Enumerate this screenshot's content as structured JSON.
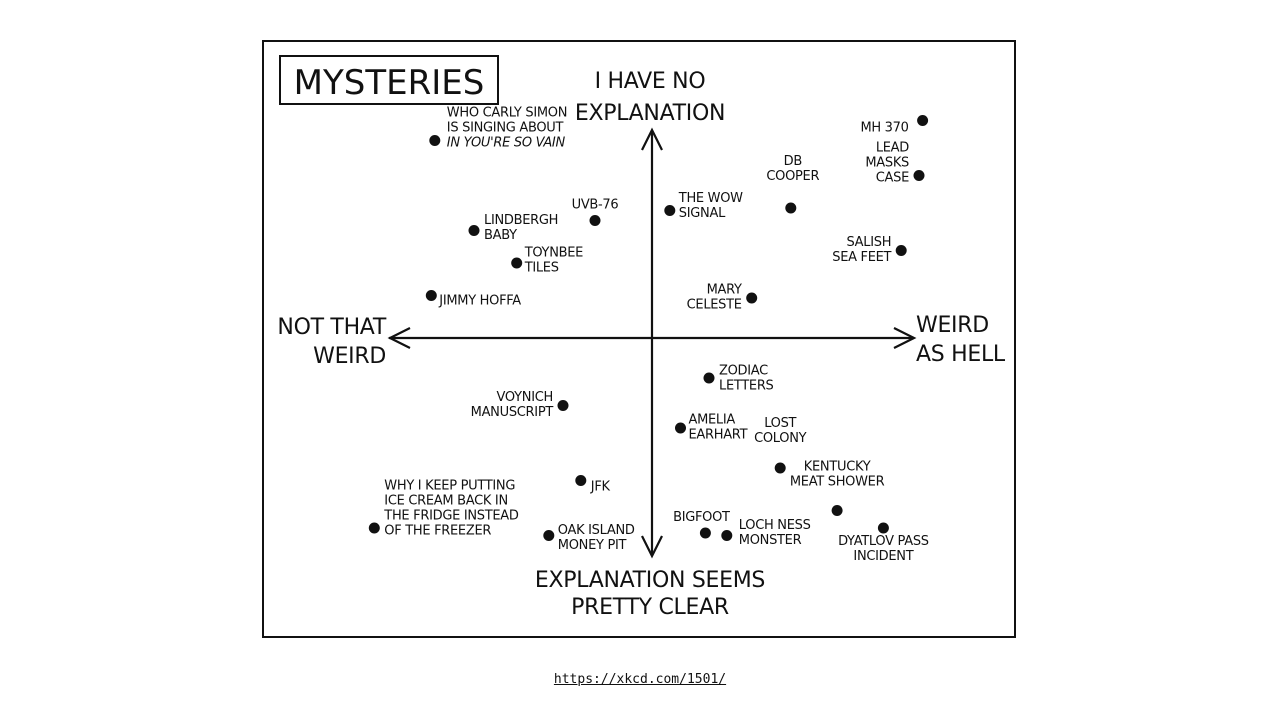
{
  "title": "MYSTERIES",
  "axes": {
    "top": [
      "I HAVE NO",
      "EXPLANATION"
    ],
    "bottom": [
      "EXPLANATION SEEMS",
      "PRETTY CLEAR"
    ],
    "left": [
      "NOT THAT",
      "WEIRD"
    ],
    "right": [
      "WEIRD",
      "AS HELL"
    ]
  },
  "items": [
    {
      "id": "carly-simon",
      "lines": [
        "WHO CARLY SIMON",
        "IS SINGING ABOUT",
        "IN YOU'RE SO VAIN"
      ],
      "italic_last": true,
      "weird": -0.61,
      "unexplained": 0.79
    },
    {
      "id": "uvb76",
      "lines": [
        "UVB-76"
      ],
      "weird": -0.16,
      "unexplained": 0.47
    },
    {
      "id": "wow-signal",
      "lines": [
        "THE WOW",
        "SIGNAL"
      ],
      "weird": 0.05,
      "unexplained": 0.51
    },
    {
      "id": "db-cooper",
      "lines": [
        "DB",
        "COOPER"
      ],
      "weird": 0.39,
      "unexplained": 0.52
    },
    {
      "id": "mh370",
      "lines": [
        "MH 370"
      ],
      "weird": 0.76,
      "unexplained": 0.87
    },
    {
      "id": "lead-masks",
      "lines": [
        "LEAD",
        "MASKS",
        "CASE"
      ],
      "weird": 0.75,
      "unexplained": 0.65
    },
    {
      "id": "lindbergh",
      "lines": [
        "LINDBERGH",
        "BABY"
      ],
      "weird": -0.5,
      "unexplained": 0.43
    },
    {
      "id": "toynbee",
      "lines": [
        "TOYNBEE",
        "TILES"
      ],
      "weird": -0.38,
      "unexplained": 0.3
    },
    {
      "id": "salish",
      "lines": [
        "SALISH",
        "SEA FEET"
      ],
      "weird": 0.7,
      "unexplained": 0.35
    },
    {
      "id": "jimmy-hoffa",
      "lines": [
        "JIMMY HOFFA"
      ],
      "weird": -0.62,
      "unexplained": 0.17
    },
    {
      "id": "mary-celeste",
      "lines": [
        "MARY",
        "CELESTE"
      ],
      "weird": 0.28,
      "unexplained": 0.16
    },
    {
      "id": "zodiac",
      "lines": [
        "ZODIAC",
        "LETTERS"
      ],
      "weird": 0.16,
      "unexplained": -0.16
    },
    {
      "id": "voynich",
      "lines": [
        "VOYNICH",
        "MANUSCRIPT"
      ],
      "weird": -0.25,
      "unexplained": -0.27
    },
    {
      "id": "amelia",
      "lines": [
        "AMELIA",
        "EARHART"
      ],
      "weird": 0.08,
      "unexplained": -0.36
    },
    {
      "id": "lost-colony",
      "lines": [
        "LOST",
        "COLONY"
      ],
      "weird": 0.36,
      "unexplained": -0.52
    },
    {
      "id": "jfk",
      "lines": [
        "JFK"
      ],
      "weird": -0.2,
      "unexplained": -0.57
    },
    {
      "id": "kentucky",
      "lines": [
        "KENTUCKY",
        "MEAT SHOWER"
      ],
      "weird": 0.52,
      "unexplained": -0.69
    },
    {
      "id": "ice-cream",
      "lines": [
        "WHY I KEEP PUTTING",
        "ICE CREAM BACK IN",
        "THE FRIDGE INSTEAD",
        "OF THE FREEZER"
      ],
      "weird": -0.78,
      "unexplained": -0.76
    },
    {
      "id": "oak-island",
      "lines": [
        "OAK ISLAND",
        "MONEY PIT"
      ],
      "weird": -0.29,
      "unexplained": -0.79
    },
    {
      "id": "bigfoot",
      "lines": [
        "BIGFOOT"
      ],
      "weird": 0.15,
      "unexplained": -0.78
    },
    {
      "id": "loch-ness",
      "lines": [
        "LOCH NESS",
        "MONSTER"
      ],
      "weird": 0.21,
      "unexplained": -0.79
    },
    {
      "id": "dyatlov",
      "lines": [
        "DYATLOV PASS",
        "INCIDENT"
      ],
      "weird": 0.65,
      "unexplained": -0.76
    }
  ],
  "source": "https://xkcd.com/1501/"
}
